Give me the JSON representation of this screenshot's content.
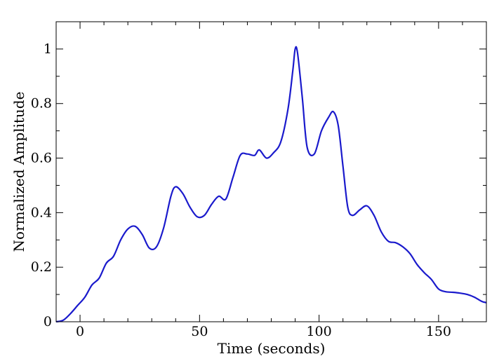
{
  "chart_data": {
    "type": "line",
    "title": "",
    "xlabel": "Time (seconds)",
    "ylabel": "Normalized Amplitude",
    "xlim": [
      -10,
      170
    ],
    "ylim": [
      0,
      1.1
    ],
    "x_ticks": [
      0,
      50,
      100,
      150
    ],
    "y_ticks": [
      0,
      0.2,
      0.4,
      0.6,
      0.8,
      1
    ],
    "x_tick_labels": [
      "0",
      "50",
      "100",
      "150"
    ],
    "y_tick_labels": [
      "0",
      "0.2",
      "0.4",
      "0.6",
      "0.8",
      "1"
    ],
    "grid": false,
    "series": [
      {
        "color": "#1a1acc",
        "x": [
          -10,
          -7,
          -4,
          -1,
          2,
          5,
          8,
          11,
          14,
          17,
          20,
          23,
          26,
          29,
          32,
          35,
          38,
          40,
          43,
          46,
          49,
          52,
          55,
          58,
          61,
          64,
          67,
          70,
          73,
          75,
          78,
          81,
          84,
          87,
          89,
          90,
          91,
          93,
          95,
          98,
          101,
          104,
          106,
          108,
          110,
          112,
          114,
          117,
          120,
          123,
          126,
          129,
          132,
          135,
          138,
          141,
          144,
          147,
          150,
          153,
          156,
          159,
          162,
          165,
          168,
          170
        ],
        "y": [
          0.0,
          0.006,
          0.03,
          0.06,
          0.09,
          0.135,
          0.16,
          0.215,
          0.24,
          0.3,
          0.34,
          0.35,
          0.32,
          0.27,
          0.275,
          0.345,
          0.46,
          0.495,
          0.47,
          0.42,
          0.385,
          0.39,
          0.43,
          0.46,
          0.45,
          0.53,
          0.61,
          0.615,
          0.61,
          0.63,
          0.6,
          0.62,
          0.66,
          0.78,
          0.92,
          1.0,
          0.985,
          0.82,
          0.64,
          0.615,
          0.7,
          0.75,
          0.77,
          0.72,
          0.57,
          0.42,
          0.39,
          0.41,
          0.425,
          0.39,
          0.33,
          0.295,
          0.29,
          0.275,
          0.25,
          0.21,
          0.18,
          0.155,
          0.12,
          0.11,
          0.108,
          0.105,
          0.1,
          0.09,
          0.075,
          0.07
        ]
      }
    ]
  }
}
